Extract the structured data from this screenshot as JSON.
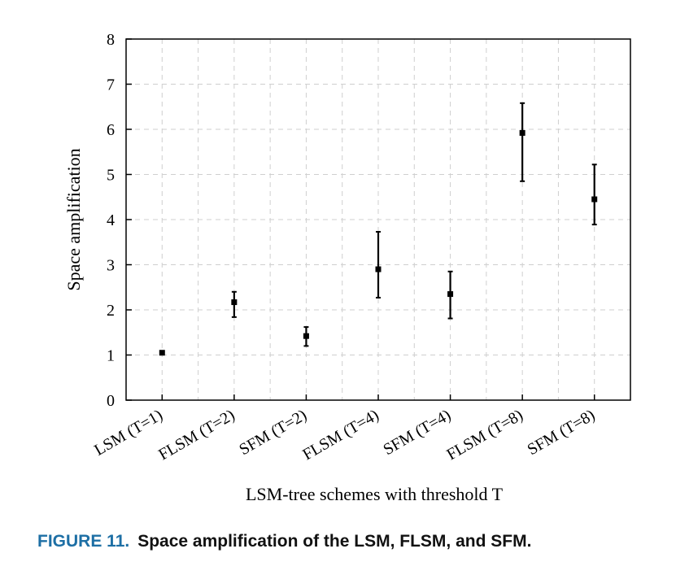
{
  "figure": {
    "number": "FIGURE 11.",
    "caption": "Space amplification of the LSM, FLSM, and SFM."
  },
  "chart_data": {
    "type": "scatter",
    "xlabel": "LSM-tree schemes with threshold T",
    "ylabel": "Space amplification",
    "ylim": [
      0,
      8
    ],
    "yticks": [
      0,
      1,
      2,
      3,
      4,
      5,
      6,
      7,
      8
    ],
    "grid": true,
    "error_bars": true,
    "categories": [
      "LSM (T=1)",
      "FLSM (T=2)",
      "SFM (T=2)",
      "FLSM (T=4)",
      "SFM (T=4)",
      "FLSM (T=8)",
      "SFM (T=8)"
    ],
    "values": [
      1.05,
      2.17,
      1.42,
      2.9,
      2.35,
      5.92,
      4.45
    ],
    "err_low": [
      1.05,
      1.84,
      1.2,
      2.27,
      1.81,
      4.85,
      3.89
    ],
    "err_high": [
      1.05,
      2.4,
      1.62,
      3.73,
      2.85,
      6.58,
      5.22
    ],
    "colors": {
      "marker": "#000000",
      "grid": "#cfcfcf",
      "axis": "#000000"
    }
  }
}
